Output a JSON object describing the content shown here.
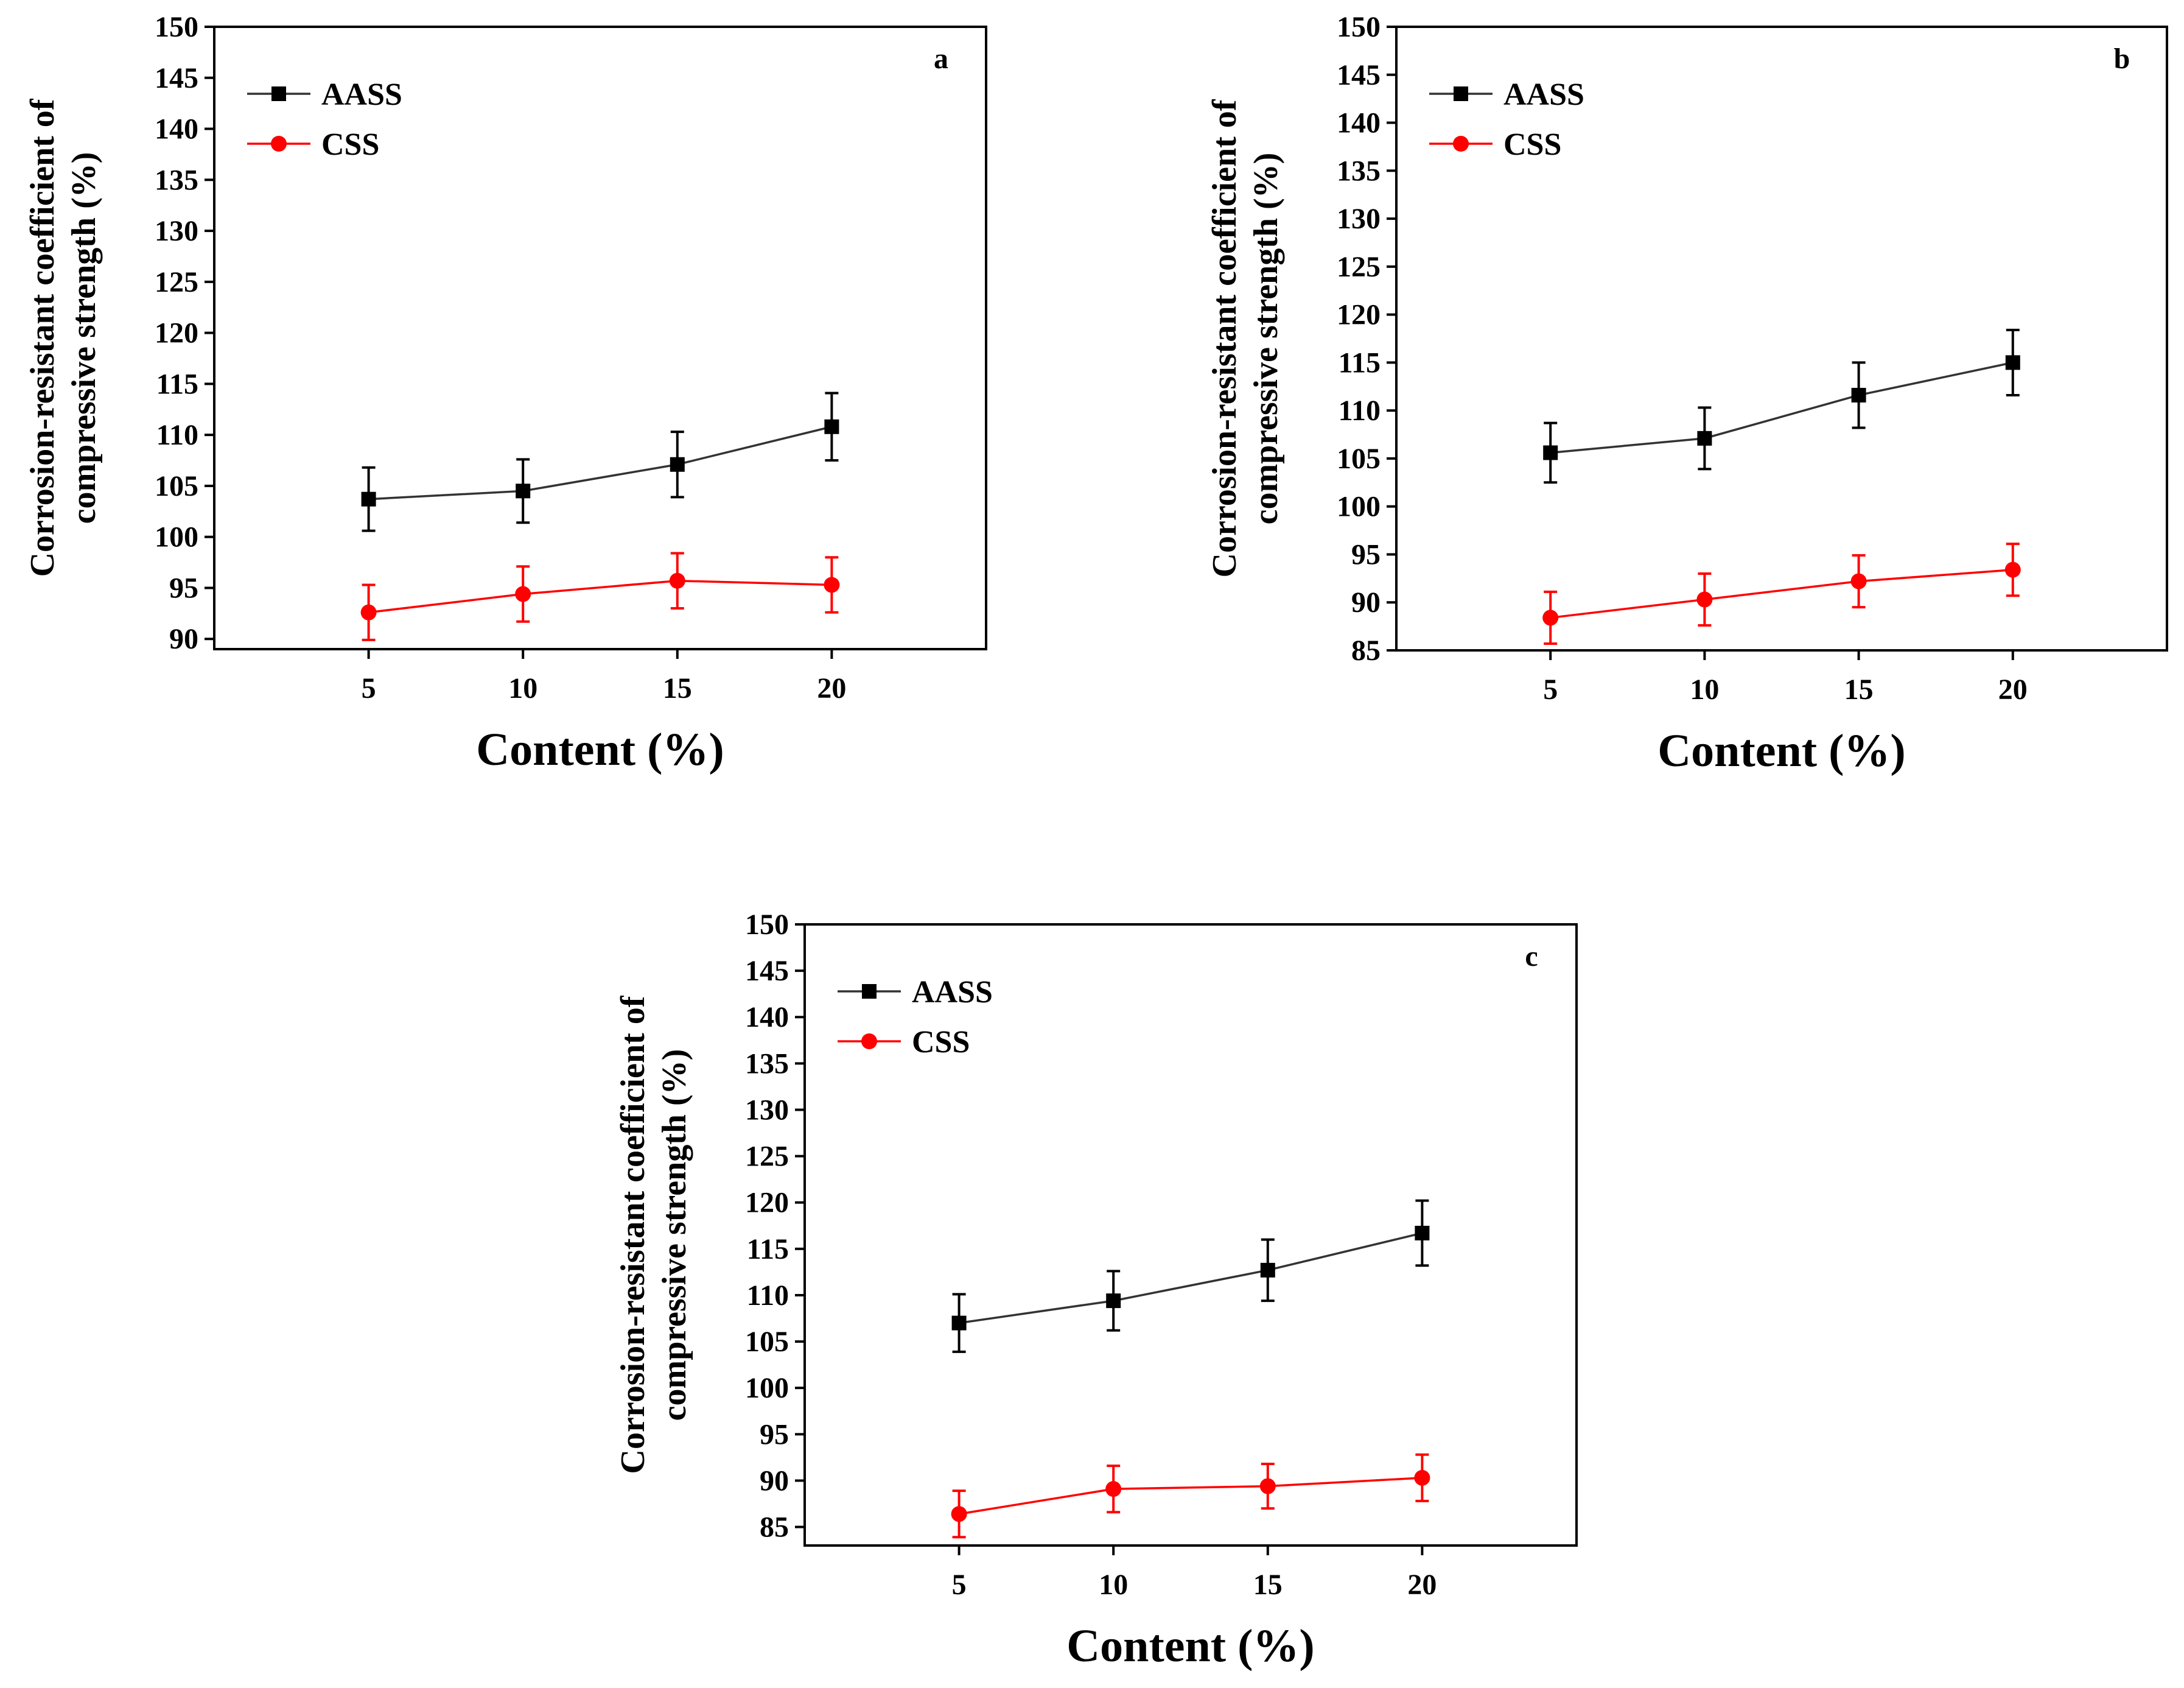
{
  "figure": {
    "chart_data": [
      {
        "type": "line",
        "panel": "a",
        "xlabel": "Content (%)",
        "ylabel_line1": "Corrosion-resistant coefficient of",
        "ylabel_line2": "compressive strength (%)",
        "x": [
          5,
          10,
          15,
          20
        ],
        "xlim": [
          0,
          25
        ],
        "ylim": [
          89,
          150
        ],
        "xticks": [
          5,
          10,
          15,
          20
        ],
        "yticks": [
          90,
          95,
          100,
          105,
          110,
          115,
          120,
          125,
          130,
          135,
          140,
          145,
          150
        ],
        "legend_position": "top-left",
        "series": [
          {
            "name": "AASS",
            "color": "#000000",
            "marker": "square",
            "values": [
              103.7,
              104.5,
              107.1,
              110.8
            ],
            "errors": [
              3.1,
              3.1,
              3.2,
              3.3
            ]
          },
          {
            "name": "CSS",
            "color": "#ff0000",
            "marker": "circle",
            "values": [
              92.6,
              94.4,
              95.7,
              95.3
            ],
            "errors": [
              2.7,
              2.7,
              2.7,
              2.7
            ]
          }
        ]
      },
      {
        "type": "line",
        "panel": "b",
        "xlabel": "Content (%)",
        "ylabel_line1": "Corrosion-resistant coefficient of",
        "ylabel_line2": "compressive strength (%)",
        "x": [
          5,
          10,
          15,
          20
        ],
        "xlim": [
          0,
          25
        ],
        "ylim": [
          85,
          150
        ],
        "xticks": [
          5,
          10,
          15,
          20
        ],
        "yticks": [
          85,
          90,
          95,
          100,
          105,
          110,
          115,
          120,
          125,
          130,
          135,
          140,
          145,
          150
        ],
        "legend_position": "top-left",
        "series": [
          {
            "name": "AASS",
            "color": "#000000",
            "marker": "square",
            "values": [
              105.6,
              107.1,
              111.6,
              115.0
            ],
            "errors": [
              3.1,
              3.2,
              3.4,
              3.4
            ]
          },
          {
            "name": "CSS",
            "color": "#ff0000",
            "marker": "circle",
            "values": [
              88.4,
              90.3,
              92.2,
              93.4
            ],
            "errors": [
              2.7,
              2.7,
              2.7,
              2.7
            ]
          }
        ]
      },
      {
        "type": "line",
        "panel": "c",
        "xlabel": "Content (%)",
        "ylabel_line1": "Corrosion-resistant coefficient of",
        "ylabel_line2": "compressive strength (%)",
        "x": [
          5,
          10,
          15,
          20
        ],
        "xlim": [
          0,
          25
        ],
        "ylim": [
          83,
          150
        ],
        "xticks": [
          5,
          10,
          15,
          20
        ],
        "yticks": [
          85,
          90,
          95,
          100,
          105,
          110,
          115,
          120,
          125,
          130,
          135,
          140,
          145,
          150
        ],
        "legend_position": "top-left",
        "series": [
          {
            "name": "AASS",
            "color": "#000000",
            "marker": "square",
            "values": [
              107.0,
              109.4,
              112.7,
              116.7
            ],
            "errors": [
              3.1,
              3.2,
              3.3,
              3.5
            ]
          },
          {
            "name": "CSS",
            "color": "#ff0000",
            "marker": "circle",
            "values": [
              86.4,
              89.1,
              89.4,
              90.3
            ],
            "errors": [
              2.5,
              2.5,
              2.4,
              2.5
            ]
          }
        ]
      }
    ]
  }
}
